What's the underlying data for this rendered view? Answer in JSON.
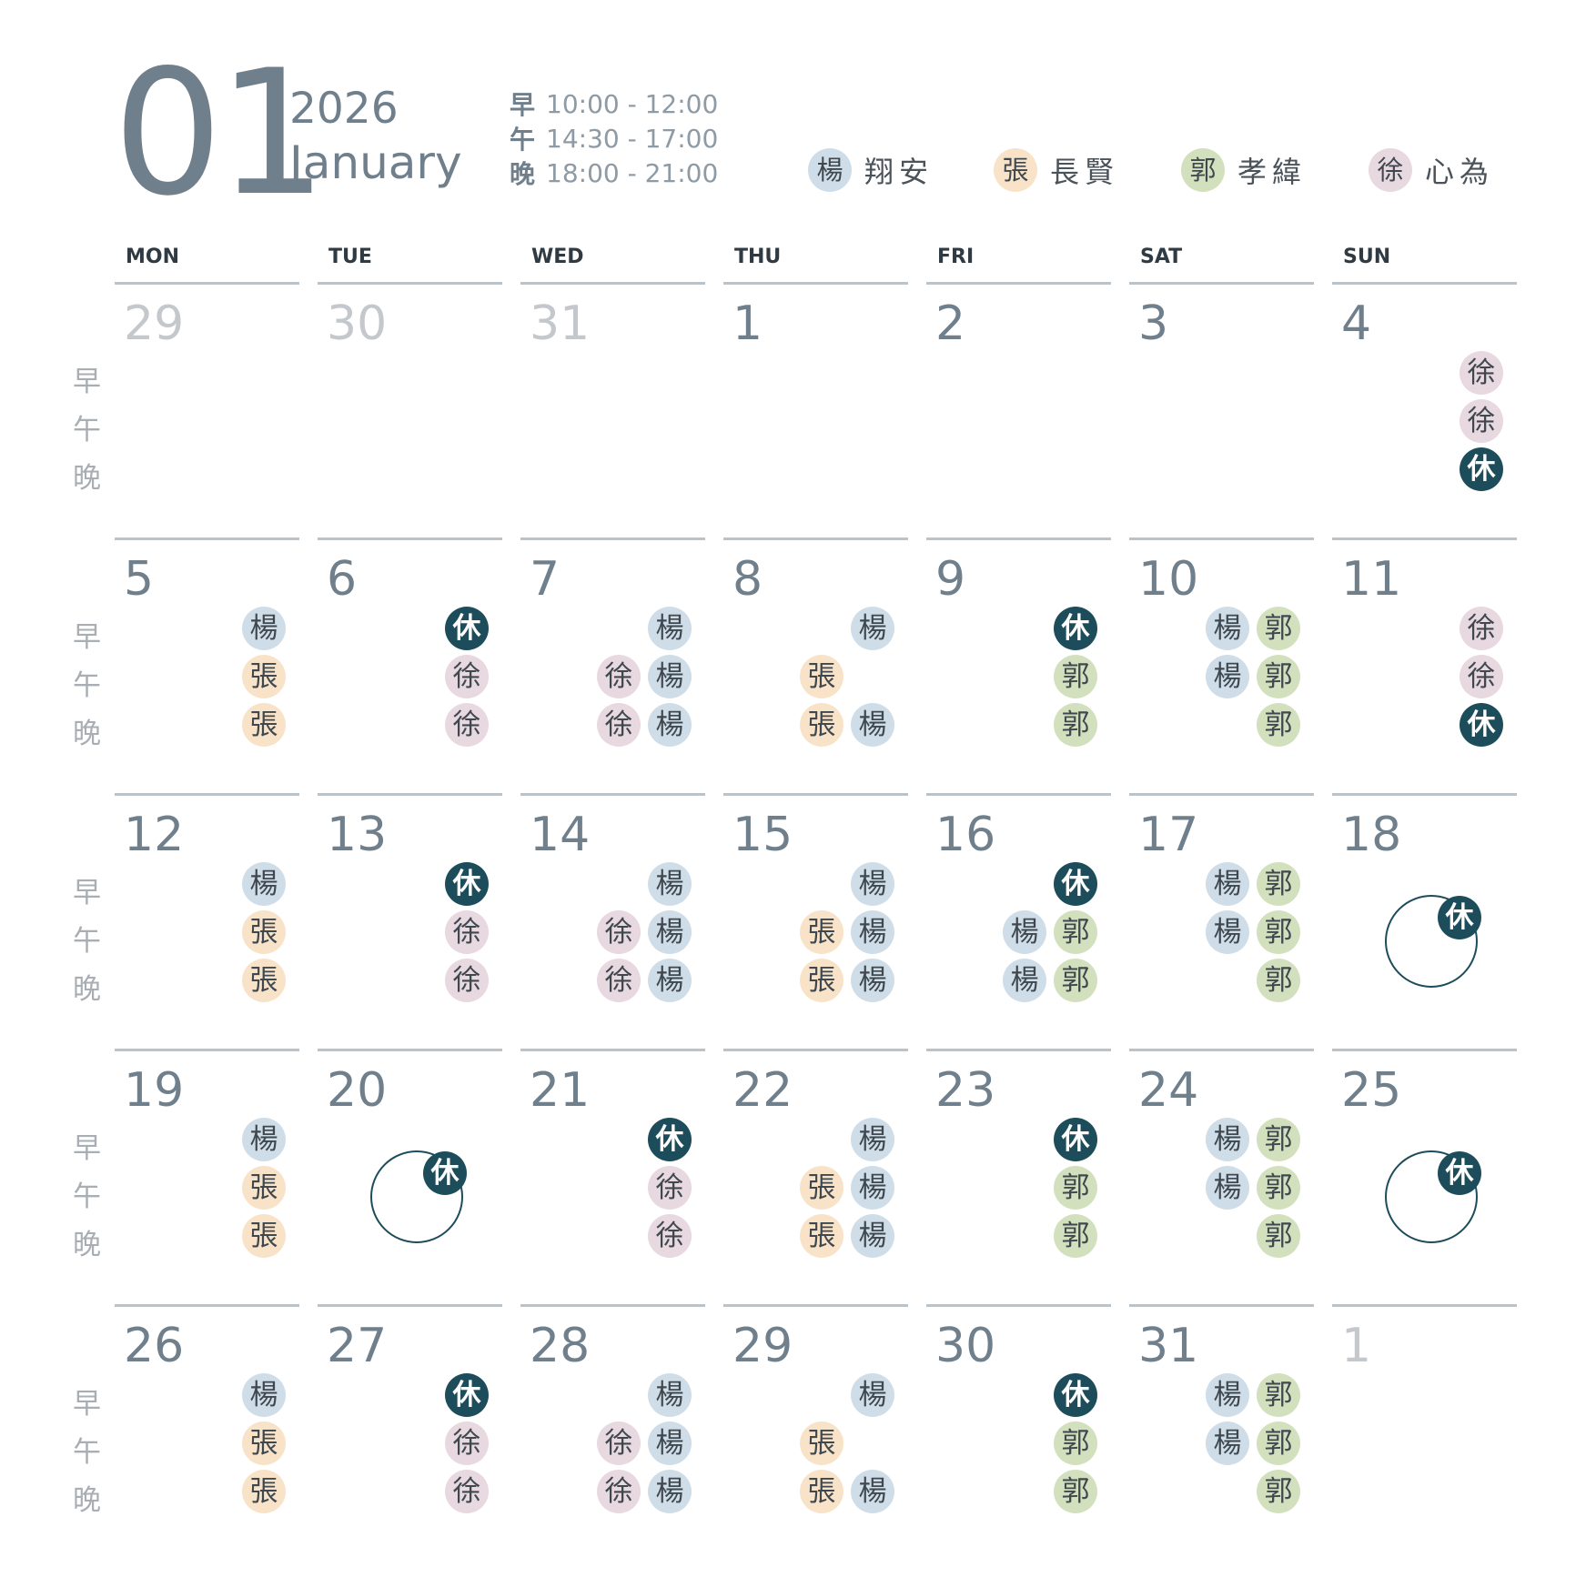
{
  "header": {
    "month_number": "01",
    "year": "2026",
    "month_name": "January",
    "hours": [
      {
        "label": "早",
        "time": "10:00 - 12:00"
      },
      {
        "label": "午",
        "time": "14:30 - 17:00"
      },
      {
        "label": "晚",
        "time": "18:00 - 21:00"
      }
    ],
    "legend": [
      {
        "key": "yang",
        "short": "楊",
        "name": "翔安"
      },
      {
        "key": "zhang",
        "short": "張",
        "name": "長賢"
      },
      {
        "key": "guo",
        "short": "郭",
        "name": "孝緯"
      },
      {
        "key": "xu",
        "short": "徐",
        "name": "心為"
      }
    ]
  },
  "colors": {
    "yang": "#cfdde8",
    "zhang": "#f8e3c8",
    "guo": "#d3e0bd",
    "xu": "#e8d8e0",
    "off": "#1d4d5a"
  },
  "day_names": [
    "MON",
    "TUE",
    "WED",
    "THU",
    "FRI",
    "SAT",
    "SUN"
  ],
  "slot_labels": [
    "早",
    "午",
    "晚"
  ],
  "off_label": "休",
  "weeks": [
    {
      "days": [
        {
          "date": "29",
          "dim": true,
          "slots": [
            [],
            [],
            []
          ]
        },
        {
          "date": "30",
          "dim": true,
          "slots": [
            [],
            [],
            []
          ]
        },
        {
          "date": "31",
          "dim": true,
          "slots": [
            [],
            [],
            []
          ]
        },
        {
          "date": "1",
          "slots": [
            [],
            [],
            []
          ]
        },
        {
          "date": "2",
          "slots": [
            [],
            [],
            []
          ]
        },
        {
          "date": "3",
          "slots": [
            [],
            [],
            []
          ]
        },
        {
          "date": "4",
          "slots": [
            [
              "xu"
            ],
            [
              "xu"
            ],
            [
              "off"
            ]
          ]
        }
      ]
    },
    {
      "days": [
        {
          "date": "5",
          "slots": [
            [
              "yang"
            ],
            [
              "zhang"
            ],
            [
              "zhang"
            ]
          ]
        },
        {
          "date": "6",
          "slots": [
            [
              "off"
            ],
            [
              "xu"
            ],
            [
              "xu"
            ]
          ]
        },
        {
          "date": "7",
          "slots": [
            [
              "yang"
            ],
            [
              "xu",
              "yang"
            ],
            [
              "xu",
              "yang"
            ]
          ]
        },
        {
          "date": "8",
          "slots": [
            [
              "yang"
            ],
            [
              "zhang",
              ""
            ],
            [
              "zhang",
              "yang"
            ]
          ]
        },
        {
          "date": "9",
          "slots": [
            [
              "off"
            ],
            [
              "guo"
            ],
            [
              "guo"
            ]
          ]
        },
        {
          "date": "10",
          "slots": [
            [
              "yang",
              "guo"
            ],
            [
              "yang",
              "guo"
            ],
            [
              "guo"
            ]
          ]
        },
        {
          "date": "11",
          "slots": [
            [
              "xu"
            ],
            [
              "xu"
            ],
            [
              "off"
            ]
          ]
        }
      ]
    },
    {
      "days": [
        {
          "date": "12",
          "slots": [
            [
              "yang"
            ],
            [
              "zhang"
            ],
            [
              "zhang"
            ]
          ]
        },
        {
          "date": "13",
          "slots": [
            [
              "off"
            ],
            [
              "xu"
            ],
            [
              "xu"
            ]
          ]
        },
        {
          "date": "14",
          "slots": [
            [
              "yang"
            ],
            [
              "xu",
              "yang"
            ],
            [
              "xu",
              "yang"
            ]
          ]
        },
        {
          "date": "15",
          "slots": [
            [
              "yang"
            ],
            [
              "zhang",
              "yang"
            ],
            [
              "zhang",
              "yang"
            ]
          ]
        },
        {
          "date": "16",
          "slots": [
            [
              "off"
            ],
            [
              "yang",
              "guo"
            ],
            [
              "yang",
              "guo"
            ]
          ]
        },
        {
          "date": "17",
          "slots": [
            [
              "yang",
              "guo"
            ],
            [
              "yang",
              "guo"
            ],
            [
              "guo"
            ]
          ]
        },
        {
          "date": "18",
          "full_off": true,
          "slots": [
            [],
            [],
            []
          ]
        }
      ]
    },
    {
      "days": [
        {
          "date": "19",
          "slots": [
            [
              "yang"
            ],
            [
              "zhang"
            ],
            [
              "zhang"
            ]
          ]
        },
        {
          "date": "20",
          "full_off": true,
          "slots": [
            [],
            [],
            []
          ]
        },
        {
          "date": "21",
          "slots": [
            [
              "off"
            ],
            [
              "xu"
            ],
            [
              "xu"
            ]
          ]
        },
        {
          "date": "22",
          "slots": [
            [
              "yang"
            ],
            [
              "zhang",
              "yang"
            ],
            [
              "zhang",
              "yang"
            ]
          ]
        },
        {
          "date": "23",
          "slots": [
            [
              "off"
            ],
            [
              "guo"
            ],
            [
              "guo"
            ]
          ]
        },
        {
          "date": "24",
          "slots": [
            [
              "yang",
              "guo"
            ],
            [
              "yang",
              "guo"
            ],
            [
              "guo"
            ]
          ]
        },
        {
          "date": "25",
          "full_off": true,
          "slots": [
            [],
            [],
            []
          ]
        }
      ]
    },
    {
      "days": [
        {
          "date": "26",
          "slots": [
            [
              "yang"
            ],
            [
              "zhang"
            ],
            [
              "zhang"
            ]
          ]
        },
        {
          "date": "27",
          "slots": [
            [
              "off"
            ],
            [
              "xu"
            ],
            [
              "xu"
            ]
          ]
        },
        {
          "date": "28",
          "slots": [
            [
              "yang"
            ],
            [
              "xu",
              "yang"
            ],
            [
              "xu",
              "yang"
            ]
          ]
        },
        {
          "date": "29",
          "slots": [
            [
              "yang"
            ],
            [
              "zhang",
              ""
            ],
            [
              "zhang",
              "yang"
            ]
          ]
        },
        {
          "date": "30",
          "slots": [
            [
              "off"
            ],
            [
              "guo"
            ],
            [
              "guo"
            ]
          ]
        },
        {
          "date": "31",
          "slots": [
            [
              "yang",
              "guo"
            ],
            [
              "yang",
              "guo"
            ],
            [
              "guo"
            ]
          ]
        },
        {
          "date": "1",
          "dim": true,
          "slots": [
            [],
            [],
            []
          ]
        }
      ]
    }
  ]
}
